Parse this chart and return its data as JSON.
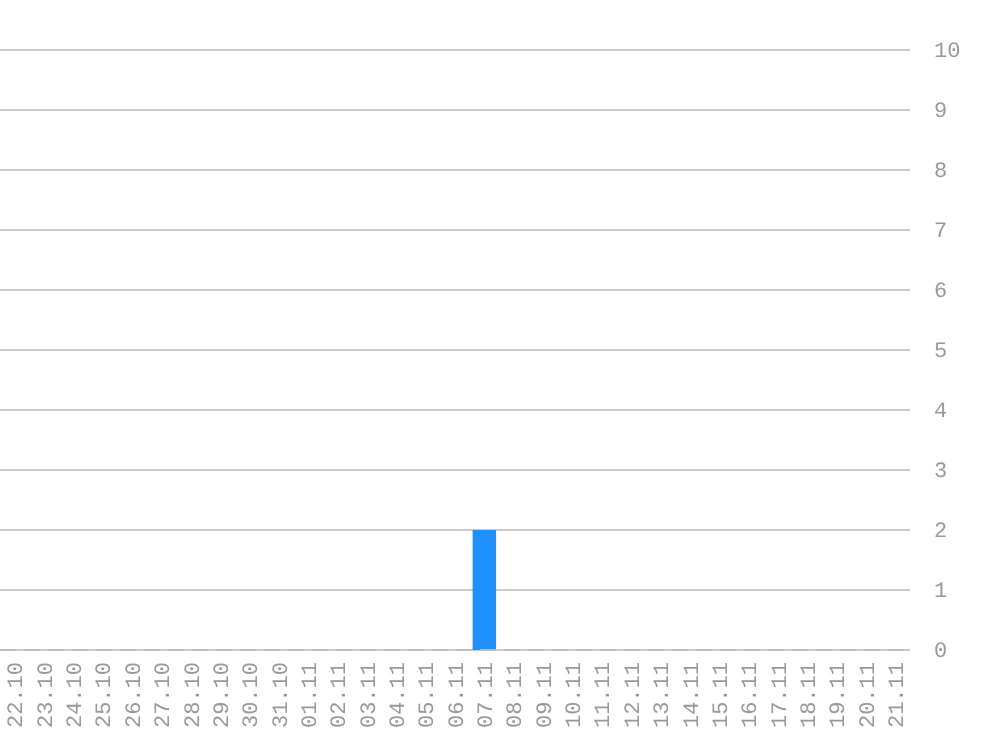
{
  "chart_data": {
    "type": "bar",
    "categories": [
      "22.10",
      "23.10",
      "24.10",
      "25.10",
      "26.10",
      "27.10",
      "28.10",
      "29.10",
      "30.10",
      "31.10",
      "01.11",
      "02.11",
      "03.11",
      "04.11",
      "05.11",
      "06.11",
      "07.11",
      "08.11",
      "09.11",
      "10.11",
      "11.11",
      "12.11",
      "13.11",
      "14.11",
      "15.11",
      "16.11",
      "17.11",
      "18.11",
      "19.11",
      "20.11",
      "21.11"
    ],
    "values": [
      0,
      0,
      0,
      0,
      0,
      0,
      0,
      0,
      0,
      0,
      0,
      0,
      0,
      0,
      0,
      0,
      2,
      0,
      0,
      0,
      0,
      0,
      0,
      0,
      0,
      0,
      0,
      0,
      0,
      0,
      0
    ],
    "color": "#1e90ff",
    "ylim": [
      0,
      10
    ],
    "yticks": [
      0,
      1,
      2,
      3,
      4,
      5,
      6,
      7,
      8,
      9,
      10
    ],
    "grid": "y"
  }
}
